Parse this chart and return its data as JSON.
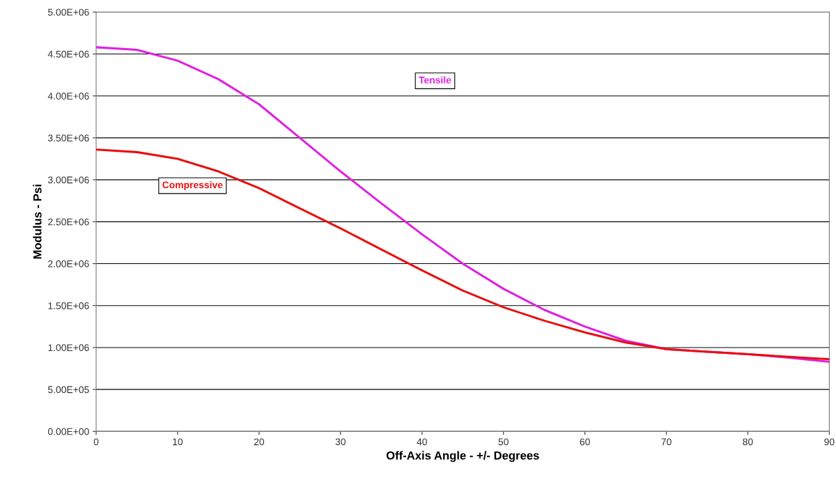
{
  "chart_data": {
    "type": "line",
    "xlabel": "Off-Axis Angle - +/- Degrees",
    "ylabel": "Modulus - Psi",
    "x": [
      0,
      5,
      10,
      15,
      20,
      25,
      30,
      35,
      40,
      45,
      50,
      55,
      60,
      65,
      70,
      75,
      80,
      85,
      90
    ],
    "series": [
      {
        "name": "Tensile",
        "color": "#e020e0",
        "values": [
          4580000,
          4550000,
          4420000,
          4200000,
          3900000,
          3500000,
          3100000,
          2720000,
          2350000,
          2000000,
          1700000,
          1450000,
          1250000,
          1080000,
          980000,
          950000,
          920000,
          880000,
          830000
        ]
      },
      {
        "name": "Compressive",
        "color": "#e81010",
        "values": [
          3360000,
          3330000,
          3250000,
          3100000,
          2900000,
          2660000,
          2420000,
          2170000,
          1920000,
          1680000,
          1480000,
          1320000,
          1180000,
          1060000,
          980000,
          950000,
          920000,
          890000,
          860000
        ]
      }
    ],
    "xlim": [
      0,
      90
    ],
    "xticks": [
      0,
      10,
      20,
      30,
      40,
      50,
      60,
      70,
      80,
      90
    ],
    "ylim": [
      0,
      5000000
    ],
    "yticks": [
      {
        "value": 0,
        "label": "0.00E+00"
      },
      {
        "value": 500000,
        "label": "5.00E+05"
      },
      {
        "value": 1000000,
        "label": "1.00E+06"
      },
      {
        "value": 1500000,
        "label": "1.50E+06"
      },
      {
        "value": 2000000,
        "label": "2.00E+06"
      },
      {
        "value": 2500000,
        "label": "2.50E+06"
      },
      {
        "value": 3000000,
        "label": "3.00E+06"
      },
      {
        "value": 3500000,
        "label": "3.50E+06"
      },
      {
        "value": 4000000,
        "label": "4.00E+06"
      },
      {
        "value": 4500000,
        "label": "4.50E+06"
      },
      {
        "value": 5000000,
        "label": "5.00E+06"
      }
    ],
    "grid": "y",
    "legend": false,
    "marker": "none",
    "line_style": "solid"
  }
}
